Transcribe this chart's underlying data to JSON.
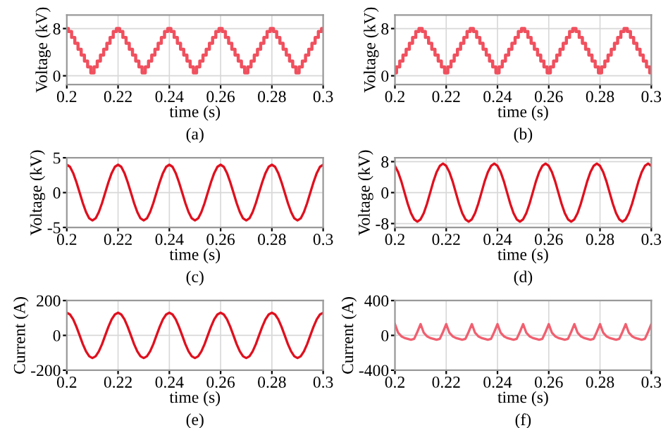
{
  "chart_data": [
    {
      "type": "step",
      "xlabel": "time (s)",
      "ylabel": "Voltage (kV)",
      "annotations": [
        "(a)"
      ],
      "xlim": [
        0.2,
        0.3
      ],
      "xticks": [
        0.2,
        0.22,
        0.24,
        0.26,
        0.28,
        0.3
      ],
      "ylim": [
        -1.5,
        10.3
      ],
      "yticks": [
        0,
        8
      ],
      "grid": true,
      "x": [
        0.2,
        0.20125,
        0.2025,
        0.20375,
        0.205,
        0.20625,
        0.2075,
        0.20875,
        0.21,
        0.21125,
        0.2125,
        0.21375,
        0.215,
        0.21625,
        0.2175,
        0.21875,
        0.22,
        0.22125,
        0.2225,
        0.22375,
        0.225,
        0.22625,
        0.2275,
        0.22875,
        0.23,
        0.23125,
        0.2325,
        0.23375,
        0.235,
        0.23625,
        0.2375,
        0.23875,
        0.24,
        0.24125,
        0.2425,
        0.24375,
        0.245,
        0.24625,
        0.2475,
        0.24875,
        0.25,
        0.25125,
        0.2525,
        0.25375,
        0.255,
        0.25625,
        0.2575,
        0.25875,
        0.26,
        0.26125,
        0.2625,
        0.26375,
        0.265,
        0.26625,
        0.2675,
        0.26875,
        0.27,
        0.27125,
        0.2725,
        0.27375,
        0.275,
        0.27625,
        0.2775,
        0.27875,
        0.28,
        0.28125,
        0.2825,
        0.28375,
        0.285,
        0.28625,
        0.2875,
        0.28875,
        0.29,
        0.29125,
        0.2925,
        0.29375,
        0.295,
        0.29625,
        0.2975,
        0.29875,
        0.3
      ],
      "series": [
        {
          "color": "#f0505e",
          "values": [
            8,
            7.5,
            6.5,
            5.5,
            4.5,
            3.5,
            2.5,
            1.5,
            0.5,
            1.5,
            2.5,
            3.5,
            4.5,
            5.5,
            6.5,
            7.5,
            8,
            7.5,
            6.5,
            5.5,
            4.5,
            3.5,
            2.5,
            1.5,
            0.5,
            1.5,
            2.5,
            3.5,
            4.5,
            5.5,
            6.5,
            7.5,
            8,
            7.5,
            6.5,
            5.5,
            4.5,
            3.5,
            2.5,
            1.5,
            0.5,
            1.5,
            2.5,
            3.5,
            4.5,
            5.5,
            6.5,
            7.5,
            8,
            7.5,
            6.5,
            5.5,
            4.5,
            3.5,
            2.5,
            1.5,
            0.5,
            1.5,
            2.5,
            3.5,
            4.5,
            5.5,
            6.5,
            7.5,
            8,
            7.5,
            6.5,
            5.5,
            4.5,
            3.5,
            2.5,
            1.5,
            0.5,
            1.5,
            2.5,
            3.5,
            4.5,
            5.5,
            6.5,
            7.5,
            8
          ]
        }
      ]
    },
    {
      "type": "step",
      "xlabel": "time (s)",
      "ylabel": "Voltage (kV)",
      "annotations": [
        "(b)"
      ],
      "xlim": [
        0.2,
        0.3
      ],
      "xticks": [
        0.2,
        0.22,
        0.24,
        0.26,
        0.28,
        0.3
      ],
      "ylim": [
        -1.5,
        10.3
      ],
      "yticks": [
        0,
        8
      ],
      "grid": true,
      "x": [
        0.2,
        0.20125,
        0.2025,
        0.20375,
        0.205,
        0.20625,
        0.2075,
        0.20875,
        0.21,
        0.21125,
        0.2125,
        0.21375,
        0.215,
        0.21625,
        0.2175,
        0.21875,
        0.22,
        0.22125,
        0.2225,
        0.22375,
        0.225,
        0.22625,
        0.2275,
        0.22875,
        0.23,
        0.23125,
        0.2325,
        0.23375,
        0.235,
        0.23625,
        0.2375,
        0.23875,
        0.24,
        0.24125,
        0.2425,
        0.24375,
        0.245,
        0.24625,
        0.2475,
        0.24875,
        0.25,
        0.25125,
        0.2525,
        0.25375,
        0.255,
        0.25625,
        0.2575,
        0.25875,
        0.26,
        0.26125,
        0.2625,
        0.26375,
        0.265,
        0.26625,
        0.2675,
        0.26875,
        0.27,
        0.27125,
        0.2725,
        0.27375,
        0.275,
        0.27625,
        0.2775,
        0.27875,
        0.28,
        0.28125,
        0.2825,
        0.28375,
        0.285,
        0.28625,
        0.2875,
        0.28875,
        0.29,
        0.29125,
        0.2925,
        0.29375,
        0.295,
        0.29625,
        0.2975,
        0.29875,
        0.3
      ],
      "series": [
        {
          "color": "#f0505e",
          "values": [
            0.5,
            1.5,
            2.5,
            3.5,
            4.5,
            5.5,
            6.5,
            7.5,
            8,
            7.5,
            6.5,
            5.5,
            4.5,
            3.5,
            2.5,
            1.5,
            0.5,
            1.5,
            2.5,
            3.5,
            4.5,
            5.5,
            6.5,
            7.5,
            8,
            7.5,
            6.5,
            5.5,
            4.5,
            3.5,
            2.5,
            1.5,
            0.5,
            1.5,
            2.5,
            3.5,
            4.5,
            5.5,
            6.5,
            7.5,
            8,
            7.5,
            6.5,
            5.5,
            4.5,
            3.5,
            2.5,
            1.5,
            0.5,
            1.5,
            2.5,
            3.5,
            4.5,
            5.5,
            6.5,
            7.5,
            8,
            7.5,
            6.5,
            5.5,
            4.5,
            3.5,
            2.5,
            1.5,
            0.5,
            1.5,
            2.5,
            3.5,
            4.5,
            5.5,
            6.5,
            7.5,
            8,
            7.5,
            6.5,
            5.5,
            4.5,
            3.5,
            2.5,
            1.5,
            0.5
          ]
        }
      ]
    },
    {
      "type": "line",
      "xlabel": "time (s)",
      "ylabel": "Voltage (kV)",
      "annotations": [
        "(c)"
      ],
      "xlim": [
        0.2,
        0.3
      ],
      "xticks": [
        0.2,
        0.22,
        0.24,
        0.26,
        0.28,
        0.3
      ],
      "ylim": [
        -5,
        5
      ],
      "yticks": [
        -5,
        0,
        5
      ],
      "grid": true,
      "x": [
        0.2,
        0.20125,
        0.2025,
        0.20375,
        0.205,
        0.20625,
        0.2075,
        0.20875,
        0.21,
        0.21125,
        0.2125,
        0.21375,
        0.215,
        0.21625,
        0.2175,
        0.21875,
        0.22,
        0.22125,
        0.2225,
        0.22375,
        0.225,
        0.22625,
        0.2275,
        0.22875,
        0.23,
        0.23125,
        0.2325,
        0.23375,
        0.235,
        0.23625,
        0.2375,
        0.23875,
        0.24,
        0.24125,
        0.2425,
        0.24375,
        0.245,
        0.24625,
        0.2475,
        0.24875,
        0.25,
        0.25125,
        0.2525,
        0.25375,
        0.255,
        0.25625,
        0.2575,
        0.25875,
        0.26,
        0.26125,
        0.2625,
        0.26375,
        0.265,
        0.26625,
        0.2675,
        0.26875,
        0.27,
        0.27125,
        0.2725,
        0.27375,
        0.275,
        0.27625,
        0.2775,
        0.27875,
        0.28,
        0.28125,
        0.2825,
        0.28375,
        0.285,
        0.28625,
        0.2875,
        0.28875,
        0.29,
        0.29125,
        0.2925,
        0.29375,
        0.295,
        0.29625,
        0.2975,
        0.29875,
        0.3
      ],
      "series": [
        {
          "color": "#e0101e",
          "values": [
            4,
            3.7,
            2.8,
            1.5,
            0,
            -1.5,
            -2.8,
            -3.7,
            -4,
            -3.7,
            -2.8,
            -1.5,
            0,
            1.5,
            2.8,
            3.7,
            4,
            3.7,
            2.8,
            1.5,
            0,
            -1.5,
            -2.8,
            -3.7,
            -4,
            -3.7,
            -2.8,
            -1.5,
            0,
            1.5,
            2.8,
            3.7,
            4,
            3.7,
            2.8,
            1.5,
            0,
            -1.5,
            -2.8,
            -3.7,
            -4,
            -3.7,
            -2.8,
            -1.5,
            0,
            1.5,
            2.8,
            3.7,
            4,
            3.7,
            2.8,
            1.5,
            0,
            -1.5,
            -2.8,
            -3.7,
            -4,
            -3.7,
            -2.8,
            -1.5,
            0,
            1.5,
            2.8,
            3.7,
            4,
            3.7,
            2.8,
            1.5,
            0,
            -1.5,
            -2.8,
            -3.7,
            -4,
            -3.7,
            -2.8,
            -1.5,
            0,
            1.5,
            2.8,
            3.7,
            4
          ]
        }
      ]
    },
    {
      "type": "line",
      "xlabel": "time (s)",
      "ylabel": "Voltage (kV)",
      "annotations": [
        "(d)"
      ],
      "xlim": [
        0.2,
        0.3
      ],
      "xticks": [
        0.2,
        0.22,
        0.24,
        0.26,
        0.28,
        0.3
      ],
      "ylim": [
        -9,
        9
      ],
      "yticks": [
        -8,
        0,
        8
      ],
      "grid": true,
      "x": [
        0.2,
        0.20125,
        0.2025,
        0.20375,
        0.205,
        0.20625,
        0.2075,
        0.20875,
        0.21,
        0.21125,
        0.2125,
        0.21375,
        0.215,
        0.21625,
        0.2175,
        0.21875,
        0.22,
        0.22125,
        0.2225,
        0.22375,
        0.225,
        0.22625,
        0.2275,
        0.22875,
        0.23,
        0.23125,
        0.2325,
        0.23375,
        0.235,
        0.23625,
        0.2375,
        0.23875,
        0.24,
        0.24125,
        0.2425,
        0.24375,
        0.245,
        0.24625,
        0.2475,
        0.24875,
        0.25,
        0.25125,
        0.2525,
        0.25375,
        0.255,
        0.25625,
        0.2575,
        0.25875,
        0.26,
        0.26125,
        0.2625,
        0.26375,
        0.265,
        0.26625,
        0.2675,
        0.26875,
        0.27,
        0.27125,
        0.2725,
        0.27375,
        0.275,
        0.27625,
        0.2775,
        0.27875,
        0.28,
        0.28125,
        0.2825,
        0.28375,
        0.285,
        0.28625,
        0.2875,
        0.28875,
        0.29,
        0.29125,
        0.2925,
        0.29375,
        0.295,
        0.29625,
        0.2975,
        0.29875,
        0.3
      ],
      "series": [
        {
          "color": "#e0101e",
          "values": [
            6.9,
            5.3,
            2.9,
            0,
            -2.9,
            -5.3,
            -6.9,
            -7.5,
            -6.9,
            -5.3,
            -2.9,
            0,
            2.9,
            5.3,
            6.9,
            7.5,
            6.9,
            5.3,
            2.9,
            0,
            -2.9,
            -5.3,
            -6.9,
            -7.5,
            -6.9,
            -5.3,
            -2.9,
            0,
            2.9,
            5.3,
            6.9,
            7.5,
            6.9,
            5.3,
            2.9,
            0,
            -2.9,
            -5.3,
            -6.9,
            -7.5,
            -6.9,
            -5.3,
            -2.9,
            0,
            2.9,
            5.3,
            6.9,
            7.5,
            6.9,
            5.3,
            2.9,
            0,
            -2.9,
            -5.3,
            -6.9,
            -7.5,
            -6.9,
            -5.3,
            -2.9,
            0,
            2.9,
            5.3,
            6.9,
            7.5,
            6.9,
            5.3,
            2.9,
            0,
            -2.9,
            -5.3,
            -6.9,
            -7.5,
            -6.9,
            -5.3,
            -2.9,
            0,
            2.9,
            5.3,
            6.9,
            7.5,
            6.9
          ]
        }
      ]
    },
    {
      "type": "line",
      "xlabel": "time (s)",
      "ylabel": "Current (A)",
      "annotations": [
        "(e)"
      ],
      "xlim": [
        0.2,
        0.3
      ],
      "xticks": [
        0.2,
        0.22,
        0.24,
        0.26,
        0.28,
        0.3
      ],
      "ylim": [
        -200,
        200
      ],
      "yticks": [
        -200,
        0,
        200
      ],
      "grid": true,
      "x": [
        0.2,
        0.20125,
        0.2025,
        0.20375,
        0.205,
        0.20625,
        0.2075,
        0.20875,
        0.21,
        0.21125,
        0.2125,
        0.21375,
        0.215,
        0.21625,
        0.2175,
        0.21875,
        0.22,
        0.22125,
        0.2225,
        0.22375,
        0.225,
        0.22625,
        0.2275,
        0.22875,
        0.23,
        0.23125,
        0.2325,
        0.23375,
        0.235,
        0.23625,
        0.2375,
        0.23875,
        0.24,
        0.24125,
        0.2425,
        0.24375,
        0.245,
        0.24625,
        0.2475,
        0.24875,
        0.25,
        0.25125,
        0.2525,
        0.25375,
        0.255,
        0.25625,
        0.2575,
        0.25875,
        0.26,
        0.26125,
        0.2625,
        0.26375,
        0.265,
        0.26625,
        0.2675,
        0.26875,
        0.27,
        0.27125,
        0.2725,
        0.27375,
        0.275,
        0.27625,
        0.2775,
        0.27875,
        0.28,
        0.28125,
        0.2825,
        0.28375,
        0.285,
        0.28625,
        0.2875,
        0.28875,
        0.29,
        0.29125,
        0.2925,
        0.29375,
        0.295,
        0.29625,
        0.2975,
        0.29875,
        0.3
      ],
      "series": [
        {
          "color": "#e0101e",
          "values": [
            130,
            120,
            92,
            50,
            0,
            -50,
            -92,
            -120,
            -130,
            -120,
            -92,
            -50,
            0,
            50,
            92,
            120,
            130,
            120,
            92,
            50,
            0,
            -50,
            -92,
            -120,
            -130,
            -120,
            -92,
            -50,
            0,
            50,
            92,
            120,
            130,
            120,
            92,
            50,
            0,
            -50,
            -92,
            -120,
            -130,
            -120,
            -92,
            -50,
            0,
            50,
            92,
            120,
            130,
            120,
            92,
            50,
            0,
            -50,
            -92,
            -120,
            -130,
            -120,
            -92,
            -50,
            0,
            50,
            92,
            120,
            130,
            120,
            92,
            50,
            0,
            -50,
            -92,
            -120,
            -130,
            -120,
            -92,
            -50,
            0,
            50,
            92,
            120,
            130
          ]
        }
      ]
    },
    {
      "type": "line",
      "xlabel": "time (s)",
      "ylabel": "Current (A)",
      "annotations": [
        "(f)"
      ],
      "xlim": [
        0.2,
        0.3
      ],
      "xticks": [
        0.2,
        0.22,
        0.24,
        0.26,
        0.28,
        0.3
      ],
      "ylim": [
        -400,
        400
      ],
      "yticks": [
        -400,
        0,
        400
      ],
      "grid": true,
      "x": [
        0.2,
        0.20125,
        0.2025,
        0.20375,
        0.205,
        0.20625,
        0.2075,
        0.20875,
        0.21,
        0.21125,
        0.2125,
        0.21375,
        0.215,
        0.21625,
        0.2175,
        0.21875,
        0.22,
        0.22125,
        0.2225,
        0.22375,
        0.225,
        0.22625,
        0.2275,
        0.22875,
        0.23,
        0.23125,
        0.2325,
        0.23375,
        0.235,
        0.23625,
        0.2375,
        0.23875,
        0.24,
        0.24125,
        0.2425,
        0.24375,
        0.245,
        0.24625,
        0.2475,
        0.24875,
        0.25,
        0.25125,
        0.2525,
        0.25375,
        0.255,
        0.25625,
        0.2575,
        0.25875,
        0.26,
        0.26125,
        0.2625,
        0.26375,
        0.265,
        0.26625,
        0.2675,
        0.26875,
        0.27,
        0.27125,
        0.2725,
        0.27375,
        0.275,
        0.27625,
        0.2775,
        0.27875,
        0.28,
        0.28125,
        0.2825,
        0.28375,
        0.285,
        0.28625,
        0.2875,
        0.28875,
        0.29,
        0.29125,
        0.2925,
        0.29375,
        0.295,
        0.29625,
        0.2975,
        0.29875,
        0.3
      ],
      "series": [
        {
          "color": "#f06070",
          "values": [
            130,
            30,
            -10,
            -30,
            -40,
            -50,
            -40,
            40,
            130,
            30,
            -10,
            -30,
            -40,
            -50,
            -40,
            40,
            130,
            30,
            -10,
            -30,
            -40,
            -50,
            -40,
            40,
            130,
            30,
            -10,
            -30,
            -40,
            -50,
            -40,
            40,
            130,
            30,
            -10,
            -30,
            -40,
            -50,
            -40,
            40,
            130,
            30,
            -10,
            -30,
            -40,
            -50,
            -40,
            40,
            130,
            30,
            -10,
            -30,
            -40,
            -50,
            -40,
            40,
            130,
            30,
            -10,
            -30,
            -40,
            -50,
            -40,
            40,
            130,
            30,
            -10,
            -30,
            -40,
            -50,
            -40,
            40,
            130,
            30,
            -10,
            -30,
            -40,
            -50,
            -40,
            40,
            130
          ]
        }
      ]
    }
  ]
}
